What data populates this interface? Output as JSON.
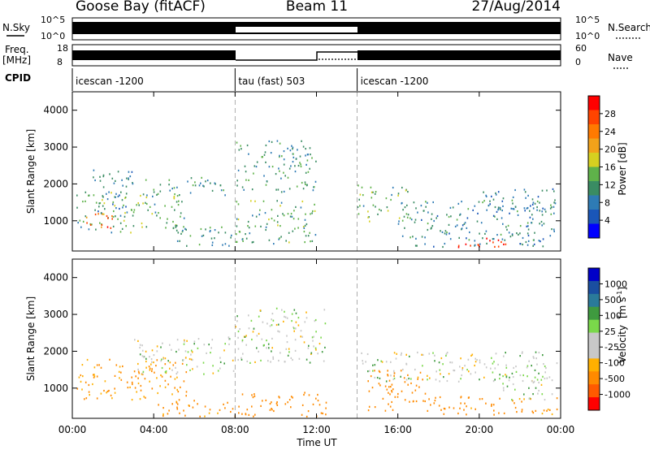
{
  "header": {
    "station": "Goose Bay (fitACF)",
    "beam": "Beam 11",
    "date": "27/Aug/2014"
  },
  "noise_panel": {
    "left_label": "N.Sky",
    "right_label": "N.Search",
    "left_ticks": [
      "10^5",
      "10^0"
    ],
    "right_ticks": [
      "10^5",
      "10^0"
    ]
  },
  "freq_panel": {
    "left_label_line1": "Freq.",
    "left_label_line2": "[MHz]",
    "left_ticks": [
      "18",
      "8"
    ],
    "right_label": "Nave",
    "right_ticks": [
      "60",
      "0"
    ]
  },
  "cpid": {
    "label": "CPID",
    "segments": [
      {
        "start": 0.0,
        "end": 8.0,
        "name": "icescan -1200"
      },
      {
        "start": 8.0,
        "end": 14.0,
        "name": "tau (fast) 503"
      },
      {
        "start": 14.0,
        "end": 24.0,
        "name": "icescan -1200"
      }
    ]
  },
  "axes": {
    "time_label": "Time UT",
    "time_ticks": [
      "00:00",
      "04:00",
      "08:00",
      "12:00",
      "16:00",
      "20:00",
      "00:00"
    ],
    "range_label": "Slant Range [km]",
    "range_ticks": [
      "1000",
      "2000",
      "3000",
      "4000"
    ],
    "range_lim": [
      180,
      4500
    ],
    "time_lim": [
      0,
      24
    ]
  },
  "colorbars": {
    "power": {
      "label": "Power [dB]",
      "ticks": [
        "4",
        "8",
        "12",
        "16",
        "20",
        "24",
        "28"
      ],
      "colors": [
        "#0000ff",
        "#1a56b8",
        "#2e7bb5",
        "#3a8c63",
        "#5fb24a",
        "#d6d020",
        "#f2a21a",
        "#ff7a00",
        "#ff4400",
        "#ff0000"
      ]
    },
    "velocity": {
      "label_main": "Velocity",
      "label_unit": "[m s",
      "label_exp": "-1",
      "label_close": "]",
      "ticks": [
        "1000",
        "500",
        "100",
        "25",
        "-25",
        "-100",
        "-500",
        "-1000"
      ],
      "colors": [
        "#0000c8",
        "#1a4ea0",
        "#2a7a9a",
        "#3f9a3f",
        "#7ad84a",
        "#c8c8c8",
        "#c8c8c8",
        "#ffb000",
        "#ff8a00",
        "#ff5a00",
        "#ff0000"
      ]
    }
  },
  "chart_data": [
    {
      "type": "heatmap",
      "title": "Power [dB]",
      "xlabel": "Time UT",
      "ylabel": "Slant Range [km]",
      "xlim": [
        0,
        24
      ],
      "ylim": [
        180,
        4500
      ],
      "clim": [
        0,
        30
      ],
      "blobs": [
        {
          "t0": 0.2,
          "t1": 5.6,
          "r0": 700,
          "r1": 1800,
          "val": 12
        },
        {
          "t0": 0.5,
          "t1": 2.0,
          "r0": 800,
          "r1": 1300,
          "val": 24
        },
        {
          "t0": 1.0,
          "t1": 3.0,
          "r0": 1200,
          "r1": 2400,
          "val": 9
        },
        {
          "t0": 3.5,
          "t1": 7.5,
          "r0": 1700,
          "r1": 2200,
          "val": 11
        },
        {
          "t0": 5.0,
          "t1": 7.8,
          "r0": 300,
          "r1": 900,
          "val": 10
        },
        {
          "t0": 8.0,
          "t1": 12.0,
          "r0": 400,
          "r1": 1600,
          "val": 12
        },
        {
          "t0": 8.0,
          "t1": 12.0,
          "r0": 1800,
          "r1": 3200,
          "val": 10
        },
        {
          "t0": 14.0,
          "t1": 16.5,
          "r0": 1000,
          "r1": 2000,
          "val": 12
        },
        {
          "t0": 16.0,
          "t1": 23.8,
          "r0": 300,
          "r1": 1600,
          "val": 9
        },
        {
          "t0": 18.5,
          "t1": 21.5,
          "r0": 300,
          "r1": 600,
          "val": 28
        },
        {
          "t0": 20.0,
          "t1": 23.8,
          "r0": 1300,
          "r1": 1900,
          "val": 8
        }
      ]
    },
    {
      "type": "heatmap",
      "title": "Velocity [m s-1]",
      "xlabel": "Time UT",
      "ylabel": "Slant Range [km]",
      "xlim": [
        0,
        24
      ],
      "ylim": [
        180,
        4500
      ],
      "clim": [
        -1000,
        1000
      ],
      "blobs": [
        {
          "t0": 0.2,
          "t1": 5.6,
          "r0": 700,
          "r1": 1800,
          "val": -120
        },
        {
          "t0": 3.0,
          "t1": 8.0,
          "r0": 1400,
          "r1": 2400,
          "val": 0
        },
        {
          "t0": 4.0,
          "t1": 8.0,
          "r0": 250,
          "r1": 700,
          "val": -150
        },
        {
          "t0": 8.0,
          "t1": 12.5,
          "r0": 1700,
          "r1": 3200,
          "val": 0
        },
        {
          "t0": 8.0,
          "t1": 12.5,
          "r0": 250,
          "r1": 900,
          "val": -200
        },
        {
          "t0": 14.0,
          "t1": 23.8,
          "r0": 1200,
          "r1": 2000,
          "val": 0
        },
        {
          "t0": 14.5,
          "t1": 17.5,
          "r0": 400,
          "r1": 1500,
          "val": -200
        },
        {
          "t0": 17.5,
          "t1": 23.8,
          "r0": 300,
          "r1": 800,
          "val": -150
        },
        {
          "t0": 21.0,
          "t1": 23.8,
          "r0": 700,
          "r1": 1400,
          "val": 0
        }
      ]
    }
  ]
}
